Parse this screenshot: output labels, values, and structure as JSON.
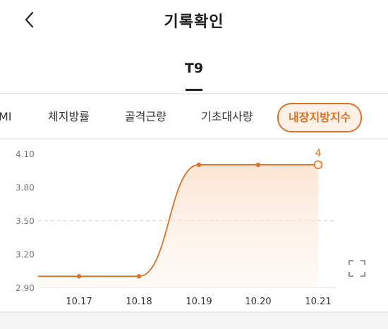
{
  "header": {
    "title": "기록확인",
    "back_icon": "chevron-left-icon"
  },
  "tabs": [
    {
      "label": "T9",
      "selected": true
    }
  ],
  "metrics": [
    {
      "label": "MI",
      "selected": false
    },
    {
      "label": "체지방률",
      "selected": false
    },
    {
      "label": "골격근량",
      "selected": false
    },
    {
      "label": "기초대사량",
      "selected": false
    },
    {
      "label": "내장지방지수",
      "selected": true
    }
  ],
  "colors": {
    "accent": "#d9752b",
    "accent_fill": "#fdf0e6",
    "divider": "#ececec"
  },
  "chart_data": {
    "type": "area",
    "categories": [
      "10.17",
      "10.18",
      "10.19",
      "10.20",
      "10.21"
    ],
    "values": [
      3.0,
      3.0,
      4.0,
      4.0,
      4.0
    ],
    "yticks": [
      "4.10",
      "3.80",
      "3.50",
      "3.20",
      "2.90"
    ],
    "ylim": [
      2.9,
      4.1
    ],
    "reference_line": 3.5,
    "highlight": {
      "index": 4,
      "label": "4"
    },
    "smooth": true
  },
  "expand_icon": "expand-icon"
}
